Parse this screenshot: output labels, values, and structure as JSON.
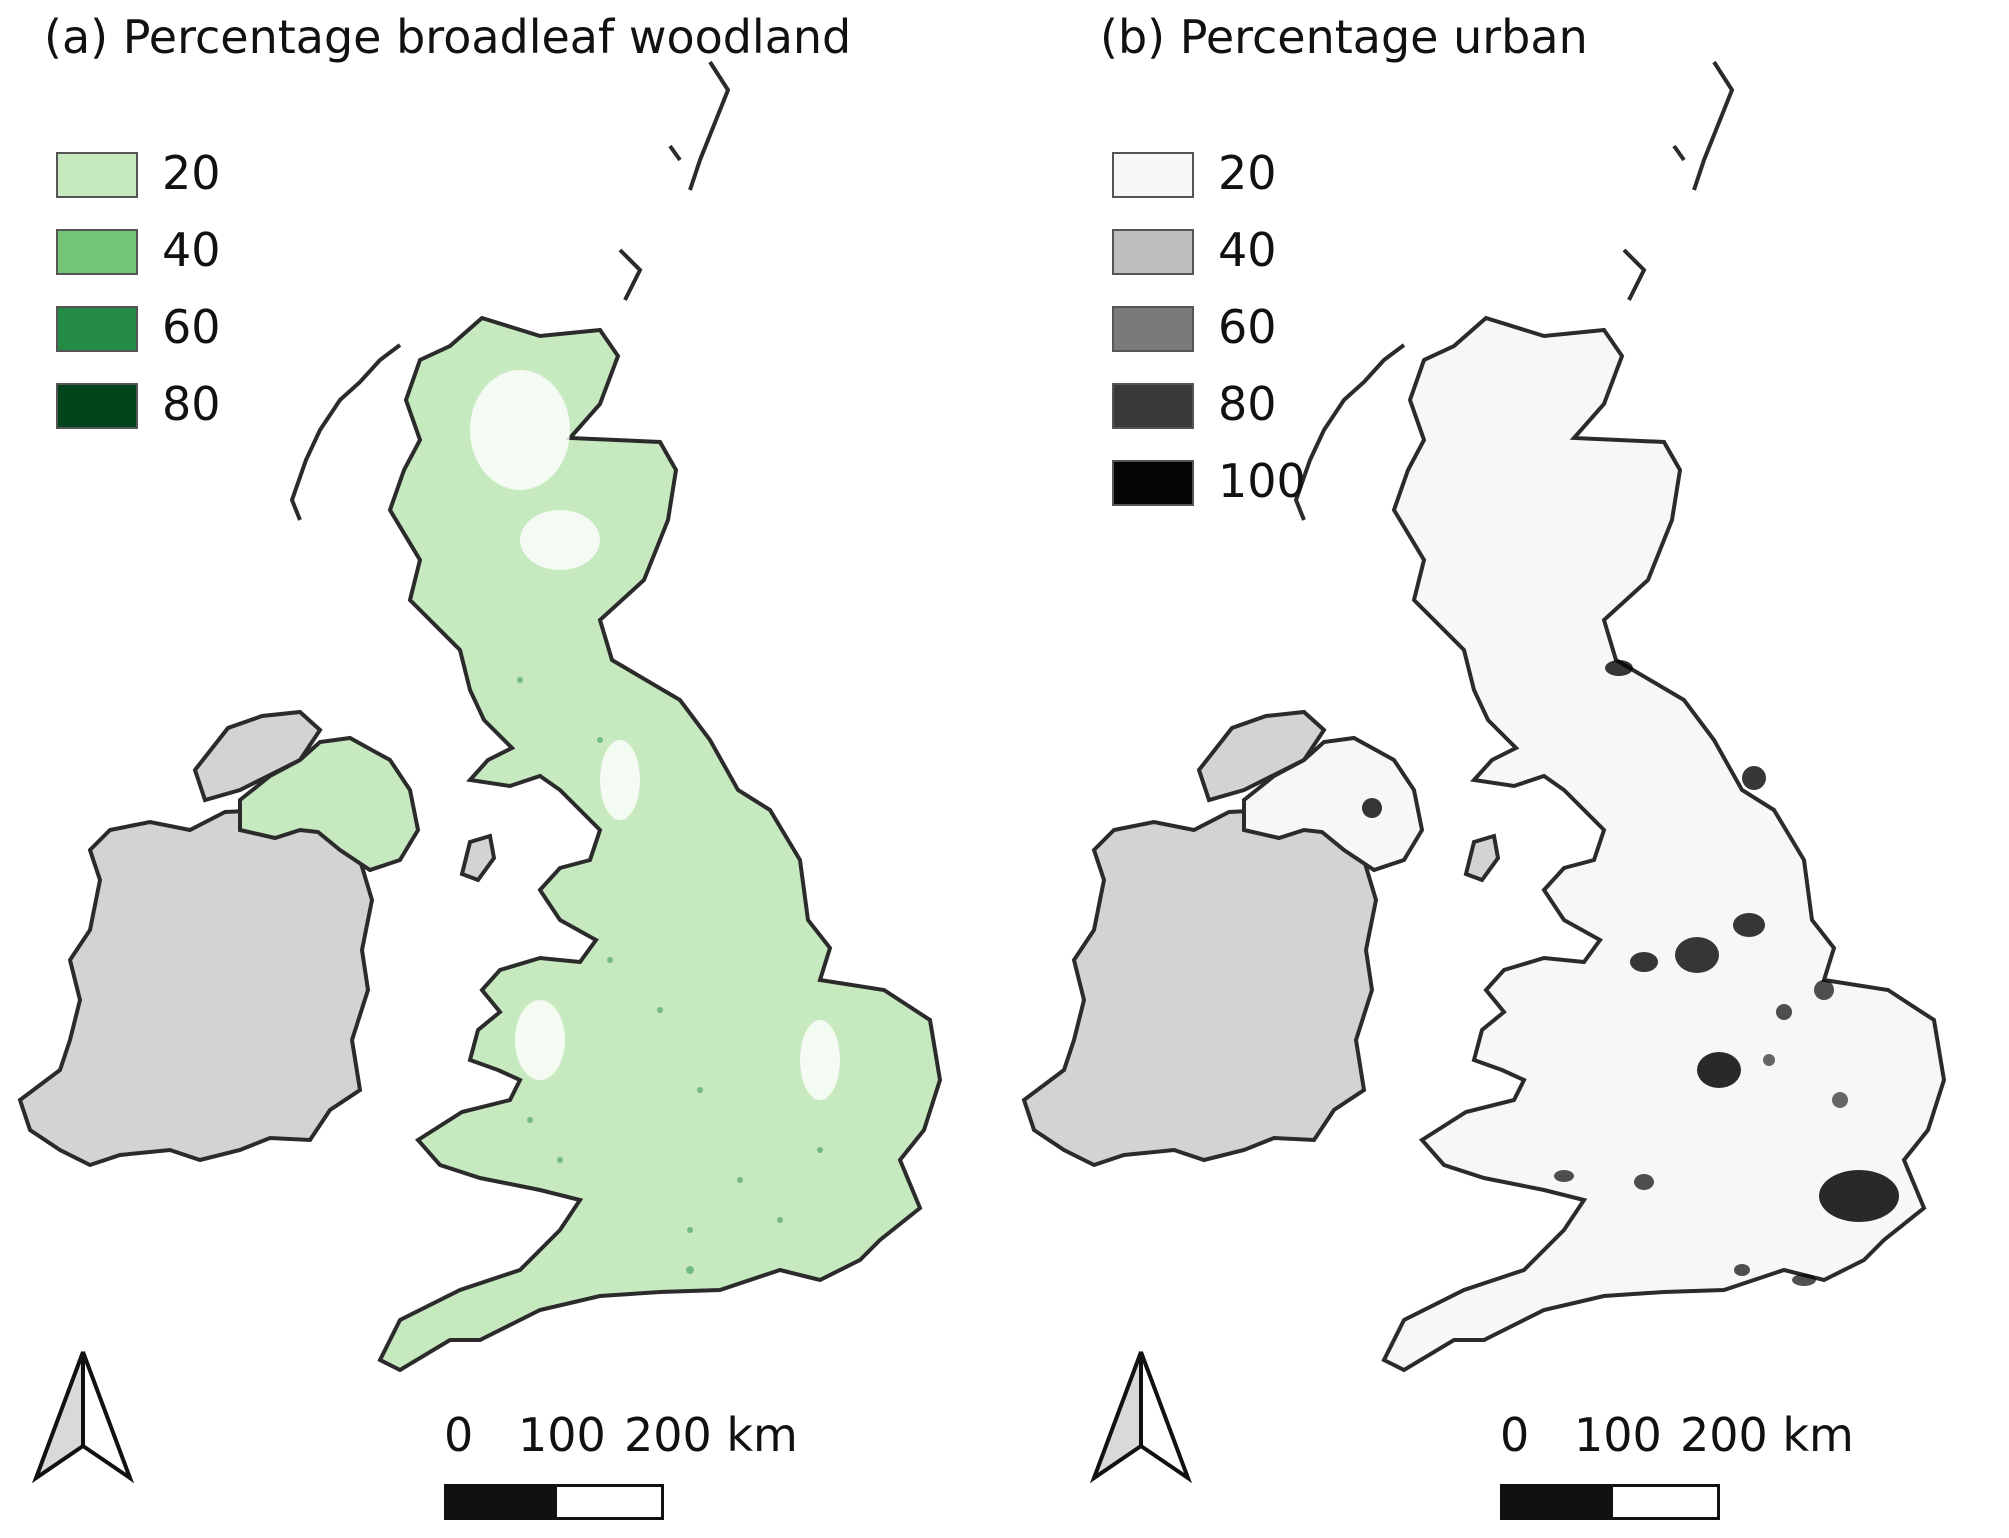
{
  "colors": {
    "ireland_fill": "#d3d3d3",
    "coastline": "#2b2b2b",
    "green_20": "#c7e9c0",
    "green_40": "#74c476",
    "green_60": "#238b45",
    "green_80": "#00441b",
    "gray_20": "#f7f7f7",
    "gray_40": "#bdbdbd",
    "gray_60": "#7a7a7a",
    "gray_80": "#3a3a3a",
    "gray_100": "#050505"
  },
  "panels": [
    {
      "title": "(a) Percentage broadleaf woodland",
      "legend": [
        {
          "label": "20",
          "color": "#c7e9c0"
        },
        {
          "label": "40",
          "color": "#74c476"
        },
        {
          "label": "60",
          "color": "#238b45"
        },
        {
          "label": "80",
          "color": "#00441b"
        }
      ],
      "scale": {
        "labels": [
          "0",
          "100",
          "200 km"
        ]
      },
      "north_arrow_icon": "north-arrow-icon"
    },
    {
      "title": "(b) Percentage urban",
      "legend": [
        {
          "label": "20",
          "color": "#f7f7f7"
        },
        {
          "label": "40",
          "color": "#bdbdbd"
        },
        {
          "label": "60",
          "color": "#7a7a7a"
        },
        {
          "label": "80",
          "color": "#3a3a3a"
        },
        {
          "label": "100",
          "color": "#050505"
        }
      ],
      "scale": {
        "labels": [
          "0",
          "100",
          "200 km"
        ]
      },
      "north_arrow_icon": "north-arrow-icon"
    }
  ]
}
